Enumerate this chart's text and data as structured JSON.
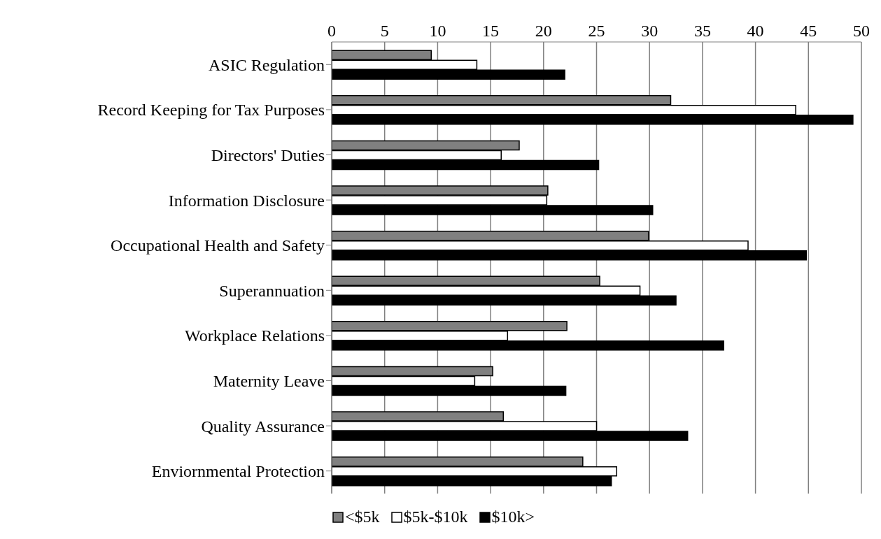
{
  "chart_data": {
    "type": "bar",
    "orientation": "horizontal",
    "categories": [
      "ASIC Regulation",
      "Record Keeping for Tax Purposes",
      "Directors' Duties",
      "Information Disclosure",
      "Occupational Health and Safety",
      "Superannuation",
      "Workplace Relations",
      "Maternity Leave",
      "Quality Assurance",
      "Enviornmental Protection"
    ],
    "series": [
      {
        "name": "<$5k",
        "color": "#808080",
        "values": [
          9.4,
          32.0,
          17.7,
          20.4,
          29.9,
          25.3,
          22.2,
          15.2,
          16.2,
          23.7
        ]
      },
      {
        "name": "$5k-$10k",
        "color": "#ffffff",
        "values": [
          13.7,
          43.8,
          16.0,
          20.3,
          39.3,
          29.1,
          16.6,
          13.5,
          25.0,
          26.9
        ]
      },
      {
        "name": "$10k>",
        "color": "#000000",
        "values": [
          22.0,
          49.2,
          25.2,
          30.3,
          44.8,
          32.5,
          37.0,
          22.1,
          33.6,
          26.4
        ]
      }
    ],
    "xlim": [
      0,
      50
    ],
    "xticks": [
      0,
      5,
      10,
      15,
      20,
      25,
      30,
      35,
      40,
      45,
      50
    ],
    "grid": "x",
    "legend": "bottom"
  }
}
